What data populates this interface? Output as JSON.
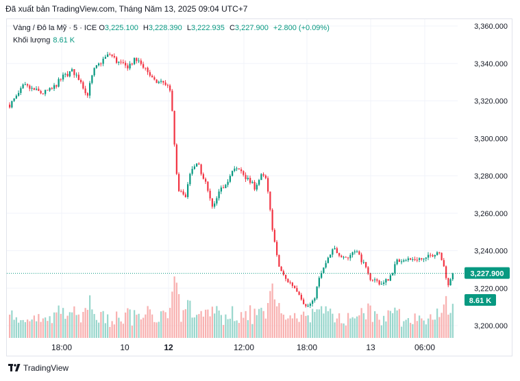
{
  "header": {
    "published": "Đã xuất bản TradingView.com, Tháng Năm 13, 2025 09:04 UTC+7"
  },
  "legend": {
    "symbol": "Vàng / Đô la Mỹ · 5 · ICE",
    "open_label": "O",
    "open": "3,225.100",
    "high_label": "H",
    "high": "3,228.390",
    "low_label": "L",
    "low": "3,222.935",
    "close_label": "C",
    "close": "3,227.900",
    "change": "+2.800 (+0.09%)",
    "volume_label": "Khối lượng",
    "volume": "8.61 K"
  },
  "colors": {
    "up": "#089981",
    "down": "#f23645",
    "volume_up": "#8fd3c8",
    "volume_down": "#f7a9a7",
    "grid": "#f0f3fa"
  },
  "footer": {
    "brand": "TradingView",
    "logo_icon": "tradingview-logo-icon"
  },
  "chart_data": {
    "type": "candlestick",
    "title": "Vàng / Đô la Mỹ · 5 · ICE",
    "y_axis": {
      "ticks": [
        "3,360.000",
        "3,340.000",
        "3,320.000",
        "3,300.000",
        "3,280.000",
        "3,260.000",
        "3,240.000",
        "3,220.000",
        "3,200.000"
      ],
      "tick_values": [
        3360,
        3340,
        3320,
        3300,
        3280,
        3260,
        3240,
        3220,
        3200
      ],
      "ylim": [
        3193,
        3364
      ]
    },
    "x_axis": {
      "ticks": [
        "18:00",
        "10",
        "12",
        "12:00",
        "18:00",
        "13",
        "06:00"
      ],
      "bold_ticks": [
        "12"
      ]
    },
    "last_price_label": "3,227.900",
    "last_price": 3227.9,
    "volume_label": "8.61 K",
    "price_path": [
      {
        "t": 0,
        "p": 3318
      },
      {
        "t": 3,
        "p": 3322
      },
      {
        "t": 6,
        "p": 3328
      },
      {
        "t": 10,
        "p": 3326
      },
      {
        "t": 14,
        "p": 3324
      },
      {
        "t": 18,
        "p": 3326
      },
      {
        "t": 23,
        "p": 3333
      },
      {
        "t": 27,
        "p": 3336
      },
      {
        "t": 31,
        "p": 3330
      },
      {
        "t": 33,
        "p": 3322
      },
      {
        "t": 36,
        "p": 3336
      },
      {
        "t": 40,
        "p": 3342
      },
      {
        "t": 43,
        "p": 3345
      },
      {
        "t": 46,
        "p": 3341
      },
      {
        "t": 50,
        "p": 3338
      },
      {
        "t": 54,
        "p": 3342
      },
      {
        "t": 58,
        "p": 3338
      },
      {
        "t": 62,
        "p": 3330
      },
      {
        "t": 66,
        "p": 3330
      },
      {
        "t": 69,
        "p": 3326
      },
      {
        "t": 70,
        "p": 3308
      },
      {
        "t": 72,
        "p": 3273
      },
      {
        "t": 75,
        "p": 3268
      },
      {
        "t": 78,
        "p": 3283
      },
      {
        "t": 81,
        "p": 3286
      },
      {
        "t": 84,
        "p": 3276
      },
      {
        "t": 87,
        "p": 3262
      },
      {
        "t": 90,
        "p": 3271
      },
      {
        "t": 93,
        "p": 3277
      },
      {
        "t": 96,
        "p": 3283
      },
      {
        "t": 99,
        "p": 3283
      },
      {
        "t": 102,
        "p": 3278
      },
      {
        "t": 105,
        "p": 3274
      },
      {
        "t": 108,
        "p": 3280
      },
      {
        "t": 110,
        "p": 3278
      },
      {
        "t": 112,
        "p": 3258
      },
      {
        "t": 115,
        "p": 3233
      },
      {
        "t": 118,
        "p": 3225
      },
      {
        "t": 121,
        "p": 3222
      },
      {
        "t": 124,
        "p": 3218
      },
      {
        "t": 127,
        "p": 3210
      },
      {
        "t": 130,
        "p": 3212
      },
      {
        "t": 133,
        "p": 3226
      },
      {
        "t": 136,
        "p": 3234
      },
      {
        "t": 139,
        "p": 3241
      },
      {
        "t": 142,
        "p": 3238
      },
      {
        "t": 145,
        "p": 3236
      },
      {
        "t": 148,
        "p": 3241
      },
      {
        "t": 151,
        "p": 3235
      },
      {
        "t": 154,
        "p": 3226
      },
      {
        "t": 157,
        "p": 3224
      },
      {
        "t": 160,
        "p": 3222
      },
      {
        "t": 163,
        "p": 3226
      },
      {
        "t": 166,
        "p": 3234
      },
      {
        "t": 169,
        "p": 3236
      },
      {
        "t": 172,
        "p": 3235
      },
      {
        "t": 175,
        "p": 3236
      },
      {
        "t": 178,
        "p": 3235
      },
      {
        "t": 181,
        "p": 3238
      },
      {
        "t": 184,
        "p": 3240
      },
      {
        "t": 186,
        "p": 3234
      },
      {
        "t": 188,
        "p": 3220
      },
      {
        "t": 190,
        "p": 3227.9
      }
    ]
  }
}
